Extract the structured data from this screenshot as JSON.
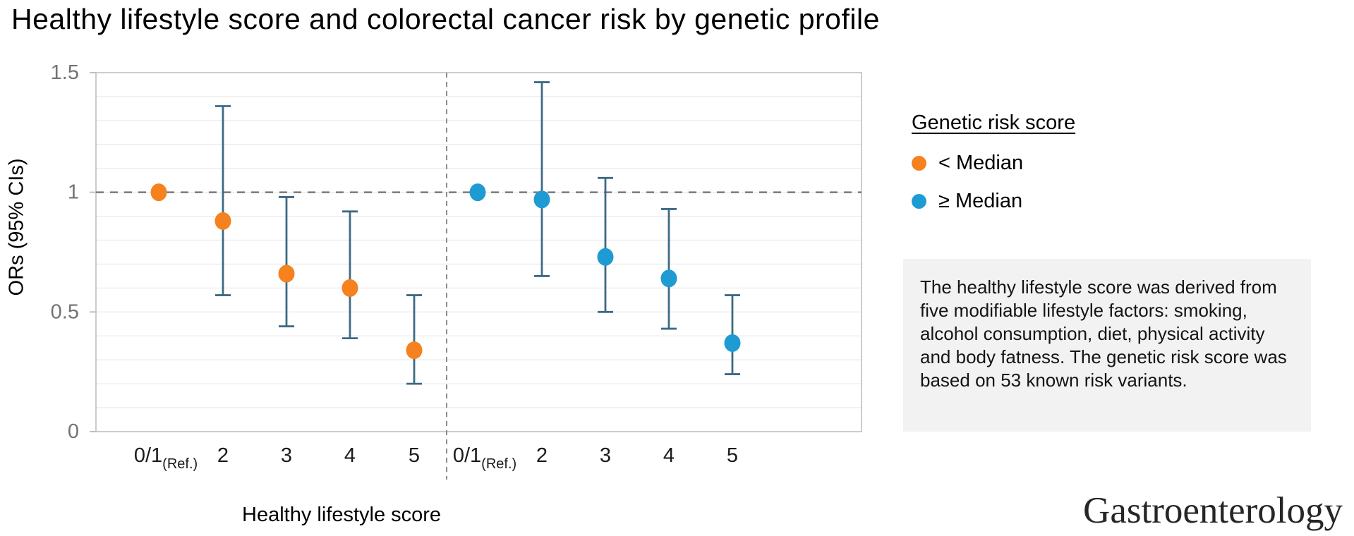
{
  "title": "Healthy lifestyle score and colorectal cancer risk by genetic profile",
  "axes": {
    "y_label": "ORs (95% CIs)",
    "x_label": "Healthy lifestyle score",
    "y_tick_values": [
      1.5,
      1,
      0.5,
      0
    ],
    "y_tick_labels": [
      "1.5",
      "1",
      "0.5",
      "0"
    ]
  },
  "legend": {
    "title": "Genetic risk score",
    "items": [
      {
        "label": "< Median",
        "color": "#F5821F"
      },
      {
        "label": "≥ Median",
        "color": "#1F9BD4"
      }
    ]
  },
  "note": "The healthy lifestyle score was derived from five modifiable lifestyle factors: smoking, alcohol consumption, diet, physical activity and body fatness. The genetic risk score was based on 53 known risk variants.",
  "journal_logo": "Gastroenterology",
  "colors": {
    "grid": "#EBEBEB",
    "axis_border": "#BFBFBF",
    "dashed_line": "#7F7F7F",
    "tick_label": "#737373",
    "x_label_text": "#1A1A1A",
    "note_bg": "#F2F2F2",
    "errorbar": "#3E6A85"
  },
  "chart_data": {
    "type": "scatter",
    "title": "Healthy lifestyle score and colorectal cancer risk by genetic profile",
    "xlabel": "Healthy lifestyle score",
    "ylabel": "ORs (95% CIs)",
    "ylim": [
      0,
      1.5
    ],
    "gridline_step": 0.1,
    "grid": true,
    "legend_position": "right",
    "reference_line_y": 1,
    "categories": [
      "0/1",
      "2",
      "3",
      "4",
      "5"
    ],
    "ref_category_suffix": "(Ref.)",
    "panels": [
      "< Median",
      "≥ Median"
    ],
    "series": [
      {
        "name": "< Median",
        "color": "#F5821F",
        "values": [
          1.0,
          0.88,
          0.66,
          0.6,
          0.34
        ],
        "ci_low": [
          null,
          0.57,
          0.44,
          0.39,
          0.2
        ],
        "ci_high": [
          null,
          1.36,
          0.98,
          0.92,
          0.57
        ]
      },
      {
        "name": "≥ Median",
        "color": "#1F9BD4",
        "values": [
          1.0,
          0.97,
          0.73,
          0.64,
          0.37
        ],
        "ci_low": [
          null,
          0.65,
          0.5,
          0.43,
          0.24
        ],
        "ci_high": [
          null,
          1.46,
          1.06,
          0.93,
          0.57
        ]
      }
    ]
  }
}
